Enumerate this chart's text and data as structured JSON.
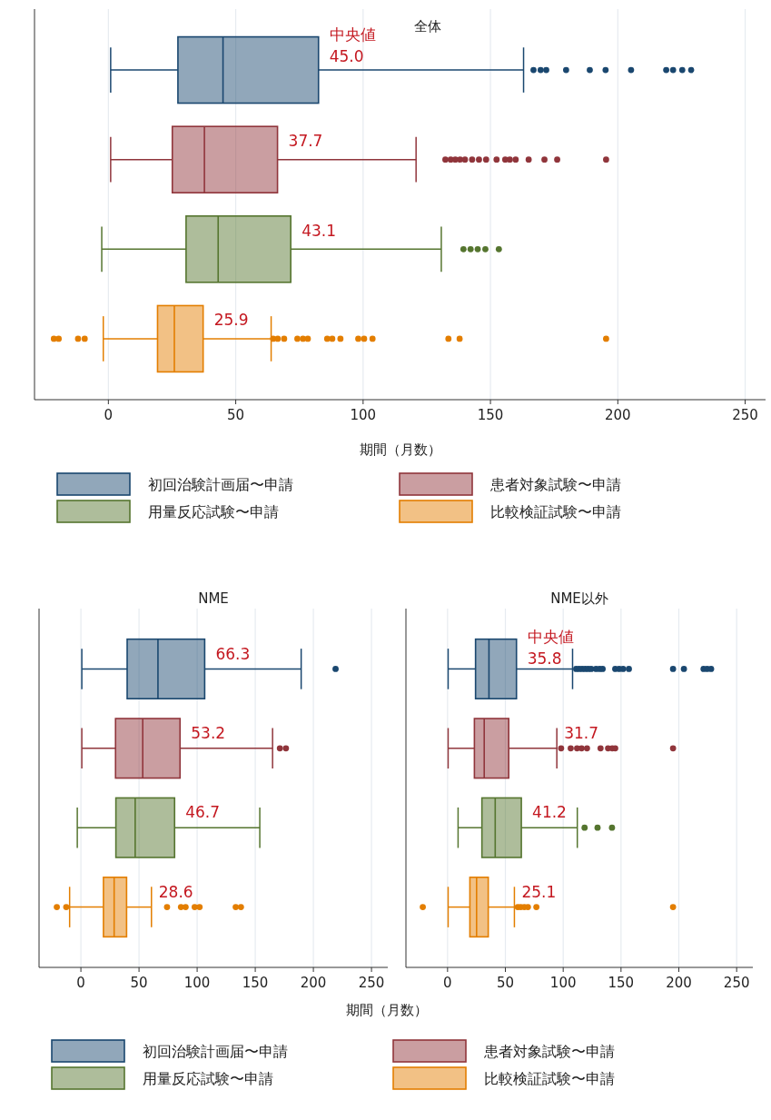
{
  "chart_data": [
    {
      "type": "box",
      "orientation": "horizontal",
      "title": "全体",
      "xlabel": "期間（月数）",
      "categories": [
        null,
        null,
        null,
        null
      ],
      "xlim": [
        -29,
        258
      ],
      "xticks": [
        0,
        50,
        100,
        150,
        200,
        250
      ],
      "grid": "x",
      "tick_labels": "x",
      "legend": "bottom",
      "series": [
        {
          "name": "初回治験計画届〜申請",
          "color": "#1a476f",
          "boxes": [
            {
              "low": 0.9,
              "q1": 27.3,
              "median": 45.0,
              "q3": 82.5,
              "high": 163,
              "outliers": [
                166.9,
                169.7,
                171.9,
                179.7,
                189,
                195.2,
                205.2,
                219,
                221.7,
                225.3,
                228.8
              ]
            },
            null,
            null,
            null
          ]
        },
        {
          "name": "患者対象試験〜申請",
          "color": "#90353b",
          "boxes": [
            null,
            {
              "low": 0.9,
              "q1": 25.1,
              "median": 37.7,
              "q3": 66.4,
              "high": 120.8,
              "outliers": [
                132.3,
                134.4,
                136.2,
                138.1,
                140,
                142.8,
                145.5,
                148.3,
                152.4,
                155.8,
                157.6,
                159.9,
                165,
                171.2,
                176.2,
                195.4
              ]
            },
            null,
            null
          ]
        },
        {
          "name": "用量反応試験〜申請",
          "color": "#55752f",
          "boxes": [
            null,
            null,
            {
              "low": -2.6,
              "q1": 30.5,
              "median": 43.1,
              "q3": 71.6,
              "high": 130.7,
              "outliers": [
                139.4,
                142.2,
                145,
                148,
                153.3
              ]
            },
            null
          ]
        },
        {
          "name": "比較検証試験〜申請",
          "color": "#e37e00",
          "boxes": [
            null,
            null,
            null,
            {
              "low": -2,
              "q1": 19.3,
              "median": 25.9,
              "q3": 37.2,
              "high": 63.9,
              "outliers": [
                -21.4,
                -19.5,
                -11.9,
                -9.3,
                64.7,
                66.5,
                69,
                74.2,
                76.4,
                78.3,
                85.9,
                87.9,
                91.1,
                98.1,
                100.4,
                103.7,
                133.5,
                137.9,
                195.4
              ]
            }
          ]
        }
      ],
      "annotations": [
        "中央値",
        "45.0",
        "37.7",
        "43.1",
        "25.9"
      ]
    },
    {
      "type": "box",
      "orientation": "horizontal",
      "title": "NME",
      "xlabel": "期間（月数）",
      "categories": [
        null,
        null,
        null,
        null
      ],
      "xlim": [
        -36,
        264
      ],
      "xticks": [
        0,
        50,
        100,
        150,
        200,
        250
      ],
      "grid": "x",
      "tick_labels": "x",
      "legend": "bottom",
      "series": [
        {
          "name": "初回治験計画届〜申請",
          "color": "#1a476f",
          "boxes": [
            {
              "low": 0.8,
              "q1": 39.8,
              "median": 66.3,
              "q3": 106.5,
              "high": 189.5,
              "outliers": [
                219.1
              ]
            },
            null,
            null,
            null
          ]
        },
        {
          "name": "患者対象試験〜申請",
          "color": "#90353b",
          "boxes": [
            null,
            {
              "low": 0.8,
              "q1": 29.8,
              "median": 53.2,
              "q3": 85.3,
              "high": 164.9,
              "outliers": [
                171.2,
                176.4
              ]
            },
            null,
            null
          ]
        },
        {
          "name": "用量反応試験〜申請",
          "color": "#55752f",
          "boxes": [
            null,
            null,
            {
              "low": -3.1,
              "q1": 30.1,
              "median": 46.7,
              "q3": 80.6,
              "high": 153.9
            },
            null
          ]
        },
        {
          "name": "比較検証試験〜申請",
          "color": "#e37e00",
          "boxes": [
            null,
            null,
            null,
            {
              "low": -9.7,
              "q1": 19.4,
              "median": 28.6,
              "q3": 39.3,
              "high": 60.7,
              "outliers": [
                -20.7,
                -12.6,
                74.1,
                86.1,
                90.1,
                97.9,
                102.1,
                133.2,
                137.7
              ]
            }
          ]
        }
      ],
      "annotations": [
        "66.3",
        "53.2",
        "46.7",
        "28.6"
      ]
    },
    {
      "type": "box",
      "orientation": "horizontal",
      "title": "NME以外",
      "categories": [
        null,
        null,
        null,
        null
      ],
      "xlim": [
        -36,
        264
      ],
      "xticks": [
        0,
        50,
        100,
        150,
        200,
        250
      ],
      "grid": "x",
      "tick_labels": "x",
      "series": [
        {
          "color": "#1a476f",
          "boxes": [
            {
              "low": 0.5,
              "q1": 24.2,
              "median": 35.8,
              "q3": 59.6,
              "high": 108.1,
              "outliers": [
                111.2,
                113.8,
                116.4,
                119,
                121.6,
                124.2,
                128.4,
                131.5,
                134.1,
                145,
                148.4,
                151.8,
                156.8,
                195,
                204.4,
                221.4,
                224.5,
                227.9
              ]
            },
            null,
            null,
            null
          ]
        },
        {
          "color": "#90353b",
          "boxes": [
            null,
            {
              "low": 0.5,
              "q1": 23.2,
              "median": 31.7,
              "q3": 52.9,
              "high": 94.5,
              "outliers": [
                98.2,
                106.5,
                112,
                115.9,
                120.6,
                132.3,
                138.8,
                142.4,
                145,
                195
              ]
            },
            null,
            null
          ]
        },
        {
          "color": "#55752f",
          "boxes": [
            null,
            null,
            {
              "low": 9.1,
              "q1": 29.7,
              "median": 41.2,
              "q3": 63.8,
              "high": 112.2,
              "outliers": [
                118.5,
                129.7,
                142.2
              ]
            },
            null
          ]
        },
        {
          "color": "#e37e00",
          "boxes": [
            null,
            null,
            null,
            {
              "low": 0.5,
              "q1": 19.3,
              "median": 25.1,
              "q3": 35.2,
              "high": 57.8,
              "outliers": [
                -21.4,
                60.7,
                63.3,
                66.4,
                69.5,
                76.8,
                195
              ]
            }
          ]
        }
      ],
      "annotations": [
        "中央値",
        "35.8",
        "31.7",
        "41.2",
        "25.1"
      ]
    }
  ]
}
